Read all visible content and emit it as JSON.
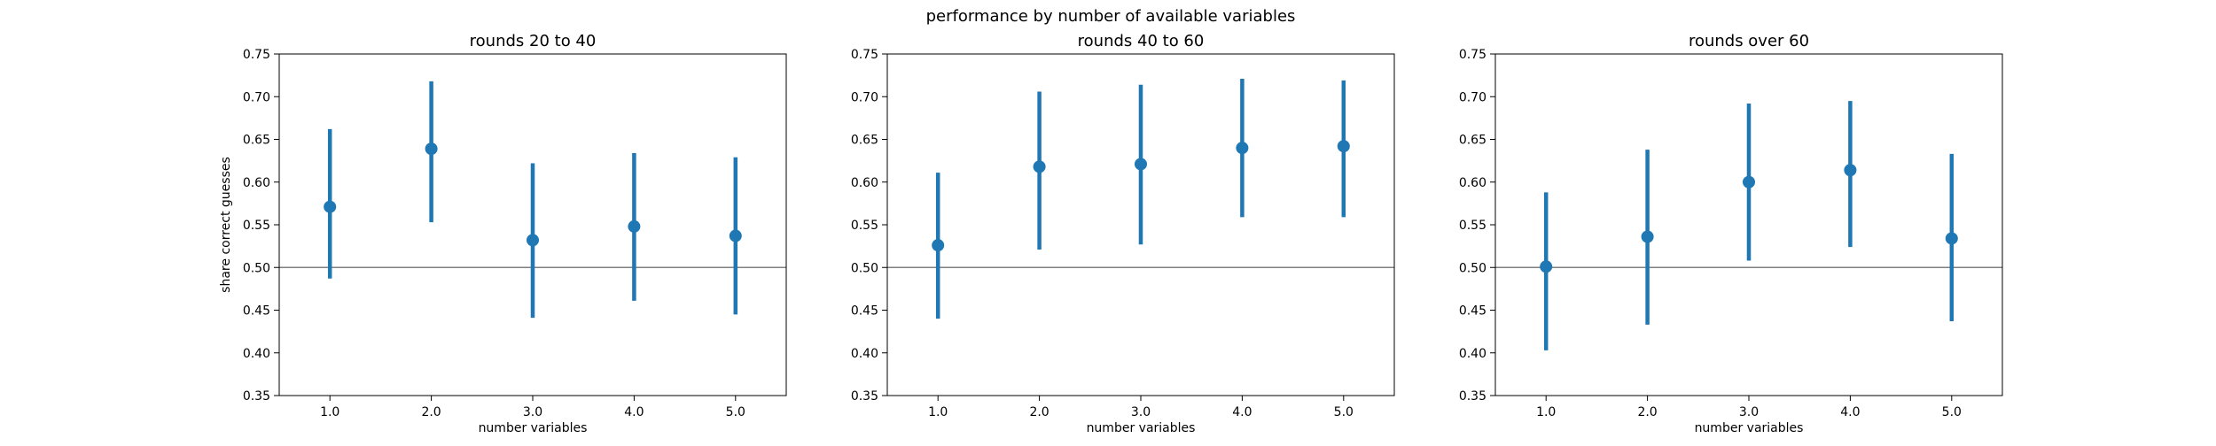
{
  "figure": {
    "suptitle": "performance by number of available variables"
  },
  "chart_data": [
    {
      "type": "scatter",
      "title": "rounds 20 to 40",
      "xlabel": "number variables",
      "ylabel": "share correct guesses",
      "x": [
        1.0,
        2.0,
        3.0,
        4.0,
        5.0
      ],
      "x_tick_labels": [
        "1.0",
        "2.0",
        "3.0",
        "4.0",
        "5.0"
      ],
      "xlim": [
        0.5,
        5.5
      ],
      "ylim": [
        0.35,
        0.75
      ],
      "y_ticks": [
        0.35,
        0.4,
        0.45,
        0.5,
        0.55,
        0.6,
        0.65,
        0.7,
        0.75
      ],
      "y_tick_labels": [
        "0.35",
        "0.40",
        "0.45",
        "0.50",
        "0.55",
        "0.60",
        "0.65",
        "0.70",
        "0.75"
      ],
      "series": [
        {
          "values": [
            0.571,
            0.639,
            0.532,
            0.548,
            0.537
          ],
          "ci_low": [
            0.487,
            0.553,
            0.441,
            0.461,
            0.445
          ],
          "ci_high": [
            0.662,
            0.718,
            0.622,
            0.634,
            0.629
          ],
          "color": "#1f77b4"
        }
      ],
      "reference_line": 0.5,
      "reference_line_color": "#808080",
      "grid": false
    },
    {
      "type": "scatter",
      "title": "rounds 40 to 60",
      "xlabel": "number variables",
      "ylabel": "",
      "x": [
        1.0,
        2.0,
        3.0,
        4.0,
        5.0
      ],
      "x_tick_labels": [
        "1.0",
        "2.0",
        "3.0",
        "4.0",
        "5.0"
      ],
      "xlim": [
        0.5,
        5.5
      ],
      "ylim": [
        0.35,
        0.75
      ],
      "y_ticks": [
        0.35,
        0.4,
        0.45,
        0.5,
        0.55,
        0.6,
        0.65,
        0.7,
        0.75
      ],
      "y_tick_labels": [
        "0.35",
        "0.40",
        "0.45",
        "0.50",
        "0.55",
        "0.60",
        "0.65",
        "0.70",
        "0.75"
      ],
      "series": [
        {
          "values": [
            0.526,
            0.618,
            0.621,
            0.64,
            0.642
          ],
          "ci_low": [
            0.44,
            0.521,
            0.527,
            0.559,
            0.559
          ],
          "ci_high": [
            0.611,
            0.706,
            0.714,
            0.721,
            0.719
          ],
          "color": "#1f77b4"
        }
      ],
      "reference_line": 0.5,
      "reference_line_color": "#808080",
      "grid": false
    },
    {
      "type": "scatter",
      "title": "rounds over 60",
      "xlabel": "number variables",
      "ylabel": "",
      "x": [
        1.0,
        2.0,
        3.0,
        4.0,
        5.0
      ],
      "x_tick_labels": [
        "1.0",
        "2.0",
        "3.0",
        "4.0",
        "5.0"
      ],
      "xlim": [
        0.5,
        5.5
      ],
      "ylim": [
        0.35,
        0.75
      ],
      "y_ticks": [
        0.35,
        0.4,
        0.45,
        0.5,
        0.55,
        0.6,
        0.65,
        0.7,
        0.75
      ],
      "y_tick_labels": [
        "0.35",
        "0.40",
        "0.45",
        "0.50",
        "0.55",
        "0.60",
        "0.65",
        "0.70",
        "0.75"
      ],
      "series": [
        {
          "values": [
            0.501,
            0.536,
            0.6,
            0.614,
            0.534
          ],
          "ci_low": [
            0.403,
            0.433,
            0.508,
            0.524,
            0.437
          ],
          "ci_high": [
            0.588,
            0.638,
            0.692,
            0.695,
            0.633
          ],
          "color": "#1f77b4"
        }
      ],
      "reference_line": 0.5,
      "reference_line_color": "#808080",
      "grid": false
    }
  ]
}
